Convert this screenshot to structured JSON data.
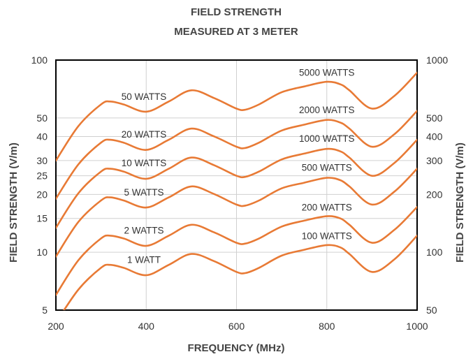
{
  "chart_data": {
    "type": "line",
    "title": "FIELD STRENGTH",
    "subtitle": "MEASURED AT 3 METER",
    "xlabel": "FREQUENCY (MHz)",
    "ylabel": "FIELD STRENGTH (V/m)",
    "ylabel_right": "FIELD STRENGTH (V/m)",
    "xlim": [
      200,
      1000
    ],
    "ylim": [
      5,
      100
    ],
    "ylim_right": [
      50,
      1000
    ],
    "yscale": "log",
    "grid": true,
    "line_color": "#E87A35",
    "x_ticks": [
      "200",
      "400",
      "600",
      "800",
      "1000"
    ],
    "y_ticks_left": [
      {
        "label": "100",
        "value": 100
      },
      {
        "label": "50",
        "value": 50
      },
      {
        "label": "40",
        "value": 40
      },
      {
        "label": "30",
        "value": 30
      },
      {
        "label": "25",
        "value": 25
      },
      {
        "label": "20",
        "value": 20
      },
      {
        "label": "15",
        "value": 15
      },
      {
        "label": "10",
        "value": 10
      },
      {
        "label": "5",
        "value": 5
      }
    ],
    "y_ticks_right": [
      {
        "label": "1000",
        "value": 1000
      },
      {
        "label": "500",
        "value": 500
      },
      {
        "label": "400",
        "value": 400
      },
      {
        "label": "300",
        "value": 300
      },
      {
        "label": "200",
        "value": 200
      },
      {
        "label": "100",
        "value": 100
      },
      {
        "label": "50",
        "value": 50
      }
    ],
    "x": [
      200,
      250,
      300,
      320,
      350,
      400,
      450,
      500,
      550,
      600,
      620,
      650,
      700,
      750,
      800,
      830,
      850,
      900,
      950,
      1000
    ],
    "series": [
      {
        "name": "1 WATT",
        "label_x": 395,
        "label_y": 8.8,
        "values": [
          4.3,
          6.4,
          8.3,
          8.6,
          8.3,
          7.6,
          8.6,
          9.8,
          9.0,
          7.9,
          7.8,
          8.3,
          9.6,
          10.3,
          10.9,
          10.6,
          9.8,
          7.9,
          9.2,
          12.2
        ]
      },
      {
        "name": "2 WATTS",
        "label_x": 395,
        "label_y": 12.5,
        "values": [
          6.0,
          9.1,
          11.8,
          12.2,
          11.8,
          10.8,
          12.2,
          13.9,
          12.7,
          11.2,
          11.1,
          11.8,
          13.6,
          14.6,
          15.4,
          15.0,
          13.9,
          11.2,
          13.1,
          17.2
        ]
      },
      {
        "name": "5 WATTS",
        "label_x": 395,
        "label_y": 19.7,
        "values": [
          9.5,
          14.4,
          18.6,
          19.3,
          18.6,
          17.1,
          19.3,
          22.0,
          20.1,
          17.7,
          17.5,
          18.6,
          21.5,
          23.0,
          24.4,
          23.7,
          22.0,
          17.7,
          20.7,
          27.2
        ]
      },
      {
        "name": "10 WATTS",
        "label_x": 395,
        "label_y": 28,
        "values": [
          13.4,
          20.3,
          26.3,
          27.2,
          26.3,
          24.1,
          27.2,
          31.1,
          28.4,
          25.0,
          24.7,
          26.3,
          30.4,
          32.6,
          34.5,
          33.5,
          31.1,
          25.0,
          29.2,
          38.5
        ]
      },
      {
        "name": "20 WATTS",
        "label_x": 395,
        "label_y": 39.5,
        "values": [
          19.0,
          28.7,
          37.2,
          38.5,
          37.2,
          34.1,
          38.5,
          44.0,
          40.1,
          35.4,
          34.9,
          37.2,
          43.0,
          46.1,
          48.8,
          47.3,
          44.0,
          35.4,
          41.2,
          54.4
        ]
      },
      {
        "name": "50 WATTS",
        "label_x": 395,
        "label_y": 62,
        "values": [
          30.0,
          45.4,
          58.8,
          60.9,
          58.8,
          53.9,
          60.9,
          69.6,
          63.5,
          55.9,
          55.2,
          58.8,
          68.0,
          72.9,
          77.1,
          74.8,
          69.6,
          55.9,
          65.2,
          86.0
        ]
      },
      {
        "name": "100 WATTS",
        "label_x": 800,
        "label_y": 11.7,
        "values": [
          4.3,
          6.4,
          8.3,
          8.6,
          8.3,
          7.6,
          8.6,
          9.8,
          9.0,
          7.9,
          7.8,
          8.3,
          9.6,
          10.3,
          10.9,
          10.6,
          9.8,
          7.9,
          9.2,
          12.2
        ]
      },
      {
        "name": "200 WATTS",
        "label_x": 800,
        "label_y": 16.5,
        "values": [
          6.0,
          9.1,
          11.8,
          12.2,
          11.8,
          10.8,
          12.2,
          13.9,
          12.7,
          11.2,
          11.1,
          11.8,
          13.6,
          14.6,
          15.4,
          15.0,
          13.9,
          11.2,
          13.1,
          17.2
        ]
      },
      {
        "name": "500 WATTS",
        "label_x": 800,
        "label_y": 26.5,
        "values": [
          9.5,
          14.4,
          18.6,
          19.3,
          18.6,
          17.1,
          19.3,
          22.0,
          20.1,
          17.7,
          17.5,
          18.6,
          21.5,
          23.0,
          24.4,
          23.7,
          22.0,
          17.7,
          20.7,
          27.2
        ]
      },
      {
        "name": "1000 WATTS",
        "label_x": 800,
        "label_y": 37.5,
        "values": [
          13.4,
          20.3,
          26.3,
          27.2,
          26.3,
          24.1,
          27.2,
          31.1,
          28.4,
          25.0,
          24.7,
          26.3,
          30.4,
          32.6,
          34.5,
          33.5,
          31.1,
          25.0,
          29.2,
          38.5
        ]
      },
      {
        "name": "2000 WATTS",
        "label_x": 800,
        "label_y": 53,
        "values": [
          19.0,
          28.7,
          37.2,
          38.5,
          37.2,
          34.1,
          38.5,
          44.0,
          40.1,
          35.4,
          34.9,
          37.2,
          43.0,
          46.1,
          48.8,
          47.3,
          44.0,
          35.4,
          41.2,
          54.4
        ]
      },
      {
        "name": "5000 WATTS",
        "label_x": 800,
        "label_y": 83,
        "values": [
          30.0,
          45.4,
          58.8,
          60.9,
          58.8,
          53.9,
          60.9,
          69.6,
          63.5,
          55.9,
          55.2,
          58.8,
          68.0,
          72.9,
          77.1,
          74.8,
          69.6,
          55.9,
          65.2,
          86.0
        ]
      }
    ]
  }
}
